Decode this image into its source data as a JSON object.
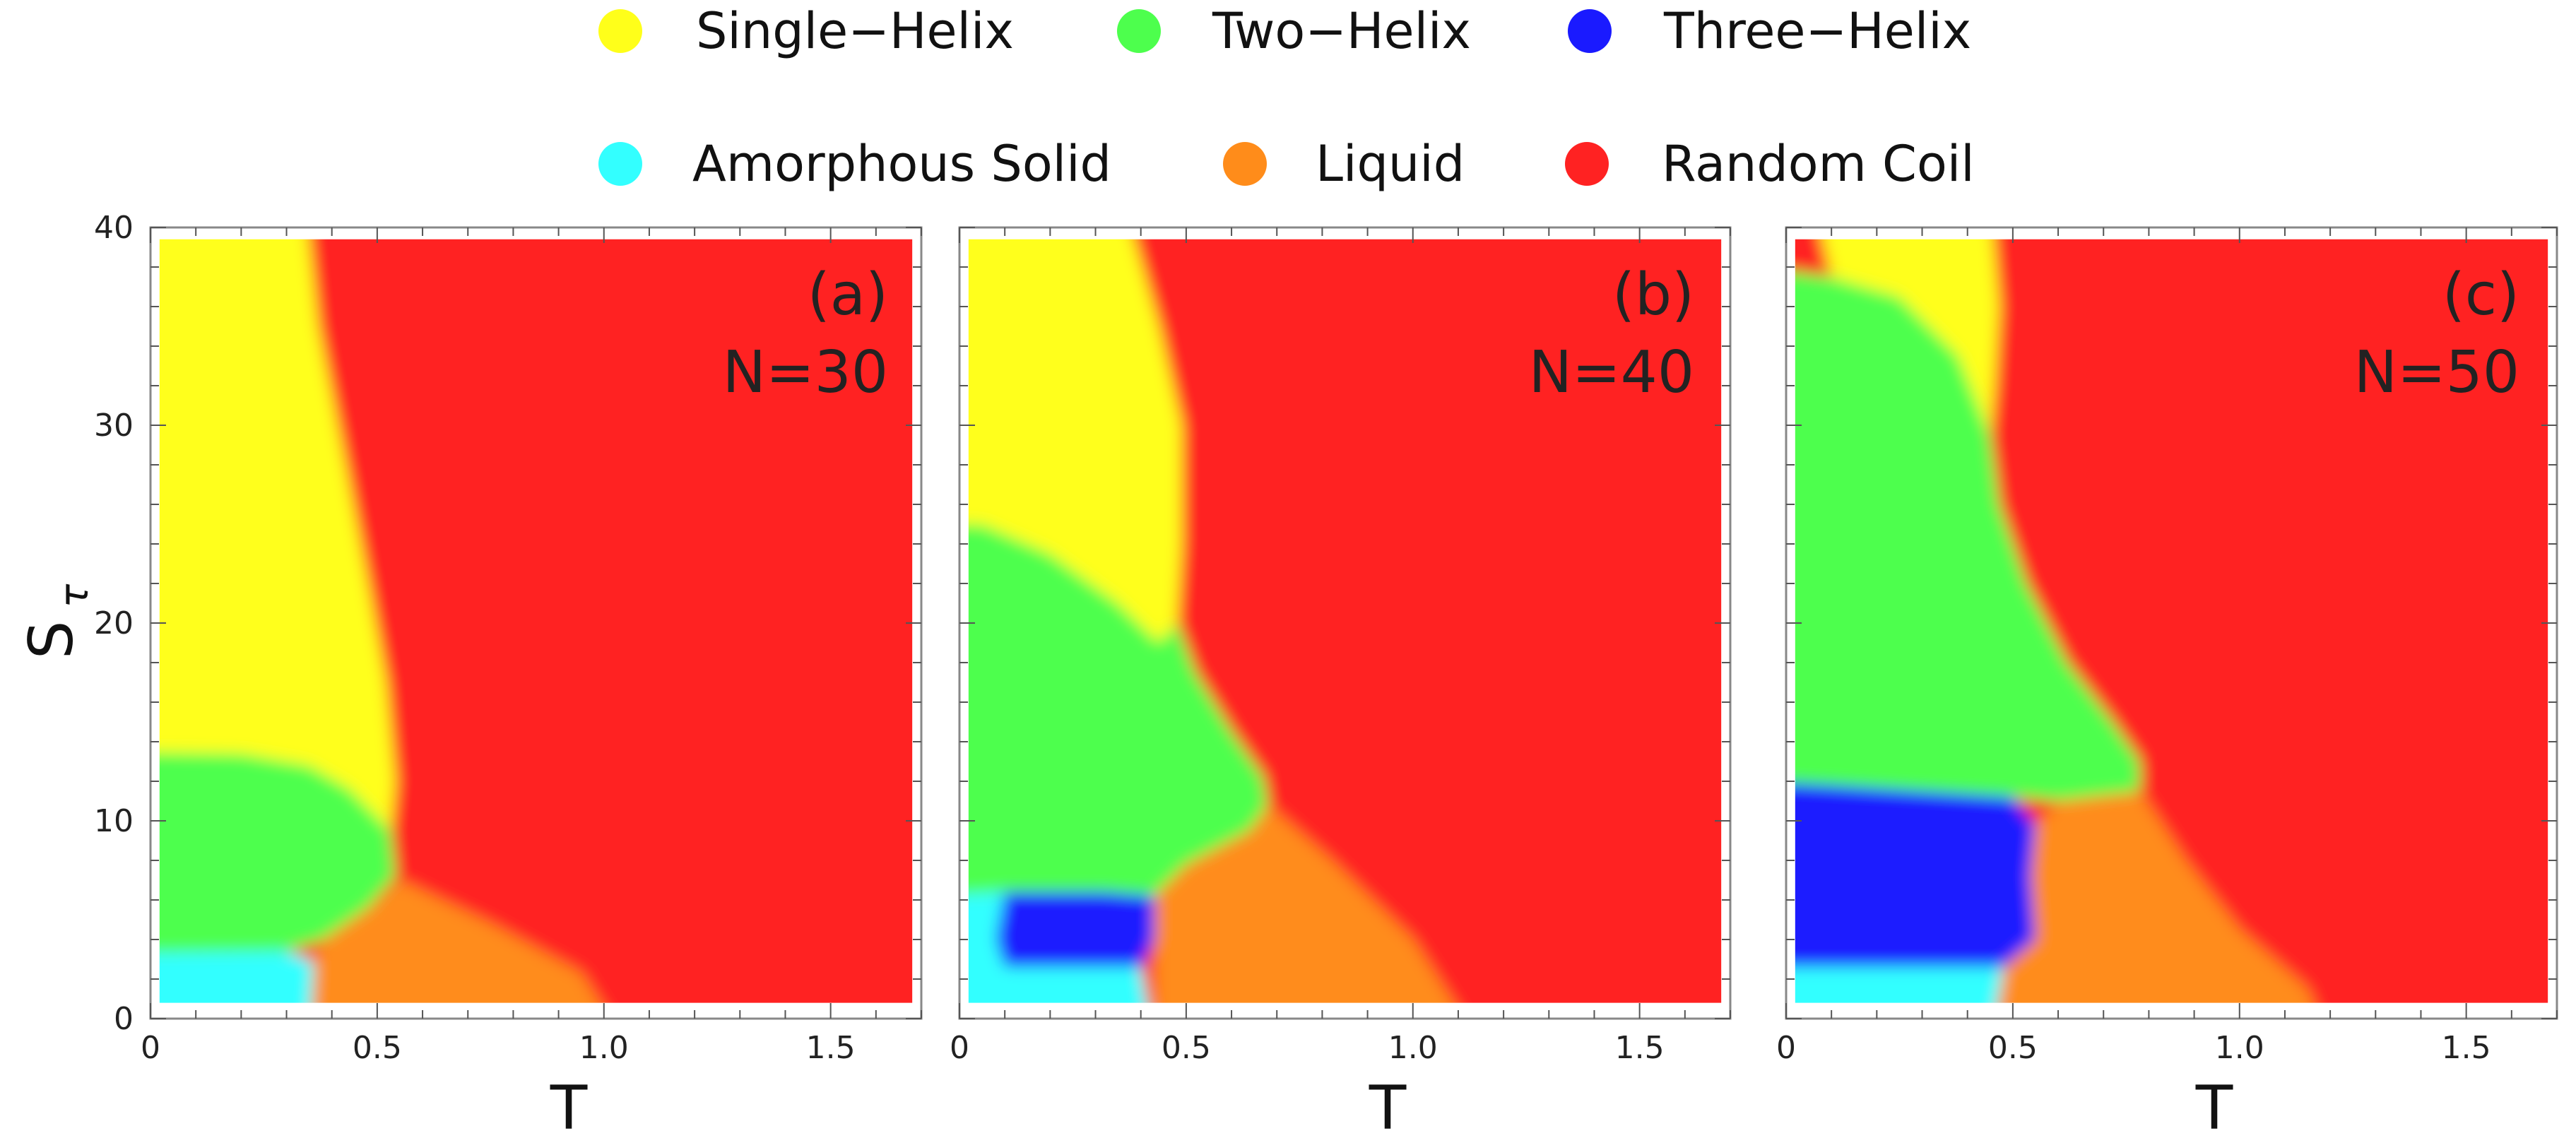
{
  "colors": {
    "single_helix": "#ffff1a",
    "two_helix": "#4dff4d",
    "three_helix": "#1a1aff",
    "amorphous_solid": "#33ffff",
    "liquid": "#ff8c1a",
    "random_coil": "#ff2222",
    "frame": "#888888"
  },
  "chart_data": {
    "type": "heatmap",
    "description_of_axes": "",
    "legend": {
      "placement": "top",
      "entries": [
        {
          "key": "single_helix",
          "label": "Single−Helix"
        },
        {
          "key": "two_helix",
          "label": "Two−Helix"
        },
        {
          "key": "three_helix",
          "label": "Three−Helix"
        },
        {
          "key": "amorphous_solid",
          "label": "Amorphous Solid"
        },
        {
          "key": "liquid",
          "label": "Liquid"
        },
        {
          "key": "random_coil",
          "label": "Random Coil"
        }
      ]
    },
    "x_axis": {
      "label": "T",
      "range": [
        0,
        1.7
      ],
      "data_extent": [
        0.02,
        1.68
      ],
      "ticks": [
        0,
        0.5,
        1.0,
        1.5
      ],
      "tick_labels": [
        "0",
        "0.5",
        "1.0",
        "1.5"
      ],
      "minor_tick_step": 0.1
    },
    "y_axis": {
      "label": "S",
      "label_subscript": "τ",
      "range": [
        0,
        40
      ],
      "data_extent": [
        0.8,
        39.4
      ],
      "ticks": [
        0,
        10,
        20,
        30,
        40
      ],
      "tick_labels": [
        "0",
        "10",
        "20",
        "30",
        "40"
      ],
      "minor_tick_step": 2
    },
    "panels": [
      {
        "label": "(a)",
        "annotation": "N=30",
        "regions": [
          {
            "phase": "single_helix",
            "boundary": [
              [
                0,
                40
              ],
              [
                0.34,
                40
              ],
              [
                0.37,
                35
              ],
              [
                0.43,
                28
              ],
              [
                0.48,
                22
              ],
              [
                0.52,
                17
              ],
              [
                0.54,
                12
              ],
              [
                0.53,
                9.5
              ],
              [
                0.44,
                11.6
              ],
              [
                0.35,
                12.8
              ],
              [
                0.2,
                13.4
              ],
              [
                0,
                13.5
              ]
            ]
          },
          {
            "phase": "two_helix",
            "boundary": [
              [
                0,
                13.5
              ],
              [
                0.2,
                13.4
              ],
              [
                0.35,
                12.8
              ],
              [
                0.44,
                11.6
              ],
              [
                0.53,
                9.5
              ],
              [
                0.54,
                7.2
              ],
              [
                0.48,
                5.6
              ],
              [
                0.38,
                4.0
              ],
              [
                0.3,
                3.4
              ],
              [
                0,
                3.3
              ]
            ]
          },
          {
            "phase": "amorphous_solid",
            "boundary": [
              [
                0,
                3.3
              ],
              [
                0.3,
                3.4
              ],
              [
                0.36,
                2.9
              ],
              [
                0.35,
                0
              ],
              [
                0,
                0
              ]
            ]
          },
          {
            "phase": "liquid",
            "boundary": [
              [
                0.36,
                2.9
              ],
              [
                0.38,
                4.0
              ],
              [
                0.48,
                5.6
              ],
              [
                0.55,
                7.0
              ],
              [
                0.75,
                4.8
              ],
              [
                0.95,
                2.3
              ],
              [
                1.05,
                0
              ],
              [
                0.35,
                0
              ]
            ]
          }
        ]
      },
      {
        "label": "(b)",
        "annotation": "N=40",
        "regions": [
          {
            "phase": "single_helix",
            "boundary": [
              [
                0,
                40
              ],
              [
                0.36,
                40
              ],
              [
                0.44,
                35
              ],
              [
                0.49,
                30
              ],
              [
                0.49,
                24
              ],
              [
                0.48,
                20
              ],
              [
                0.44,
                19
              ],
              [
                0.35,
                21
              ],
              [
                0.2,
                23.5
              ],
              [
                0.05,
                25
              ],
              [
                0,
                25
              ]
            ]
          },
          {
            "phase": "two_helix",
            "boundary": [
              [
                0,
                25
              ],
              [
                0.05,
                25
              ],
              [
                0.2,
                23.5
              ],
              [
                0.35,
                21
              ],
              [
                0.44,
                19
              ],
              [
                0.48,
                20
              ],
              [
                0.52,
                17.5
              ],
              [
                0.6,
                14.5
              ],
              [
                0.67,
                12.2
              ],
              [
                0.68,
                10.8
              ],
              [
                0.64,
                9.5
              ],
              [
                0.5,
                7.8
              ],
              [
                0.43,
                6.2
              ],
              [
                0.32,
                6.4
              ],
              [
                0.1,
                6.4
              ],
              [
                0,
                6.2
              ]
            ]
          },
          {
            "phase": "three_helix",
            "boundary": [
              [
                0.1,
                6.4
              ],
              [
                0.32,
                6.4
              ],
              [
                0.43,
                6.2
              ],
              [
                0.43,
                4.0
              ],
              [
                0.4,
                2.6
              ],
              [
                0.1,
                2.6
              ],
              [
                0.08,
                4.0
              ]
            ]
          },
          {
            "phase": "amorphous_solid",
            "boundary": [
              [
                0,
                6.2
              ],
              [
                0.1,
                6.4
              ],
              [
                0.08,
                4.0
              ],
              [
                0.1,
                2.6
              ],
              [
                0.4,
                2.6
              ],
              [
                0.43,
                0
              ],
              [
                0,
                0
              ]
            ]
          },
          {
            "phase": "liquid",
            "boundary": [
              [
                0.43,
                6.2
              ],
              [
                0.5,
                7.8
              ],
              [
                0.64,
                9.5
              ],
              [
                0.68,
                10.8
              ],
              [
                0.82,
                8.0
              ],
              [
                1.0,
                4.0
              ],
              [
                1.15,
                0
              ],
              [
                0.43,
                0
              ]
            ]
          }
        ]
      },
      {
        "label": "(c)",
        "annotation": "N=50",
        "regions": [
          {
            "phase": "single_helix",
            "boundary": [
              [
                0.06,
                40
              ],
              [
                0.45,
                40
              ],
              [
                0.47,
                36
              ],
              [
                0.46,
                32
              ],
              [
                0.45,
                29.5
              ],
              [
                0.38,
                33.5
              ],
              [
                0.25,
                36.5
              ],
              [
                0.1,
                37.5
              ]
            ]
          },
          {
            "phase": "two_helix",
            "boundary": [
              [
                0,
                38
              ],
              [
                0.1,
                37.5
              ],
              [
                0.25,
                36.5
              ],
              [
                0.38,
                33.5
              ],
              [
                0.45,
                29.5
              ],
              [
                0.47,
                26
              ],
              [
                0.53,
                22
              ],
              [
                0.62,
                18
              ],
              [
                0.72,
                15
              ],
              [
                0.78,
                13
              ],
              [
                0.78,
                11.5
              ],
              [
                0.6,
                11.0
              ],
              [
                0.5,
                11.2
              ],
              [
                0.3,
                11.5
              ],
              [
                0.1,
                11.8
              ],
              [
                0,
                12
              ]
            ]
          },
          {
            "phase": "three_helix",
            "boundary": [
              [
                0,
                12
              ],
              [
                0.1,
                11.8
              ],
              [
                0.3,
                11.5
              ],
              [
                0.5,
                11.2
              ],
              [
                0.55,
                9.8
              ],
              [
                0.54,
                7.2
              ],
              [
                0.55,
                4.0
              ],
              [
                0.48,
                2.6
              ],
              [
                0.3,
                2.6
              ],
              [
                0,
                2.6
              ]
            ]
          },
          {
            "phase": "amorphous_solid",
            "boundary": [
              [
                0,
                2.6
              ],
              [
                0.3,
                2.6
              ],
              [
                0.48,
                2.6
              ],
              [
                0.45,
                0
              ],
              [
                0,
                0
              ]
            ]
          },
          {
            "phase": "liquid",
            "boundary": [
              [
                0.48,
                2.6
              ],
              [
                0.55,
                4.0
              ],
              [
                0.54,
                7.2
              ],
              [
                0.55,
                9.8
              ],
              [
                0.6,
                11.0
              ],
              [
                0.78,
                11.5
              ],
              [
                0.88,
                8.0
              ],
              [
                1.0,
                4.5
              ],
              [
                1.15,
                1.5
              ],
              [
                1.2,
                0
              ],
              [
                0.45,
                0
              ]
            ]
          }
        ]
      }
    ]
  }
}
